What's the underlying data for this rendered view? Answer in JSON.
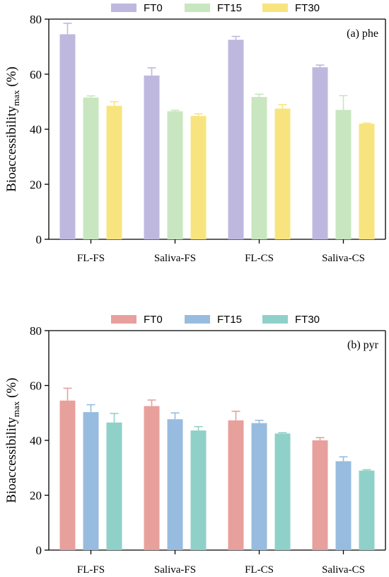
{
  "chart_data": [
    {
      "type": "bar",
      "panel_label": "(a) phe",
      "ylabel": "Bioaccessibility",
      "ylabel_subscript": "max",
      "ylabel_unit": "(%)",
      "ylim": [
        0,
        80
      ],
      "yticks": [
        "0",
        "20",
        "40",
        "60",
        "80"
      ],
      "categories": [
        "FL-FS",
        "Saliva-FS",
        "FL-CS",
        "Saliva-CS"
      ],
      "legend_position": "top-center",
      "grid": false,
      "series": [
        {
          "name": "FT0",
          "color": "#bfb8de",
          "values": [
            74.5,
            59.5,
            72.5,
            62.5
          ],
          "errors": [
            4.0,
            2.8,
            1.2,
            0.8
          ]
        },
        {
          "name": "FT15",
          "color": "#c8e6c0",
          "values": [
            51.5,
            46.5,
            51.7,
            47.0
          ],
          "errors": [
            0.6,
            0.4,
            1.0,
            5.2
          ]
        },
        {
          "name": "FT30",
          "color": "#f8e47f",
          "values": [
            48.5,
            44.8,
            47.5,
            42.0
          ],
          "errors": [
            1.5,
            0.8,
            1.4,
            0.2
          ]
        }
      ]
    },
    {
      "type": "bar",
      "panel_label": "(b) pyr",
      "ylabel": "Bioaccessibility",
      "ylabel_subscript": "max",
      "ylabel_unit": "(%)",
      "ylim": [
        0,
        80
      ],
      "yticks": [
        "0",
        "20",
        "40",
        "60",
        "80"
      ],
      "categories": [
        "FL-FS",
        "Saliva-FS",
        "FL-CS",
        "Saliva-CS"
      ],
      "legend_position": "top-center",
      "grid": false,
      "series": [
        {
          "name": "FT0",
          "color": "#e8a09c",
          "values": [
            54.5,
            52.5,
            47.3,
            40.0
          ],
          "errors": [
            4.5,
            2.2,
            3.3,
            1.0
          ]
        },
        {
          "name": "FT15",
          "color": "#98bcdf",
          "values": [
            50.3,
            47.7,
            46.3,
            32.4
          ],
          "errors": [
            2.7,
            2.3,
            1.0,
            1.6
          ]
        },
        {
          "name": "FT30",
          "color": "#8fd1c8",
          "values": [
            46.5,
            43.6,
            42.5,
            29.0
          ],
          "errors": [
            3.3,
            1.4,
            0.3,
            0.3
          ]
        }
      ]
    }
  ]
}
